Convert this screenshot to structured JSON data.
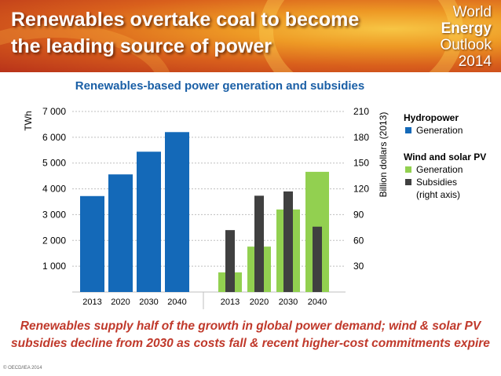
{
  "header": {
    "title_line1": "Renewables overtake coal to become",
    "title_line2": "the leading source of power",
    "logo_line1": "World",
    "logo_line2": "Energy",
    "logo_line3": "Outlook",
    "logo_line4": "2014"
  },
  "chart_data": {
    "type": "bar",
    "title": "Renewables-based power generation and subsidies",
    "ylabel": "TWh",
    "ylabel_right": "Billion dollars (2013)",
    "ylim": [
      0,
      7000
    ],
    "ylim_right": [
      0,
      210
    ],
    "yticks": [
      "1 000",
      "2 000",
      "3 000",
      "4 000",
      "5 000",
      "6 000",
      "7 000"
    ],
    "yticks_right": [
      "30",
      "60",
      "90",
      "120",
      "150",
      "180",
      "210"
    ],
    "grid": true,
    "groups": [
      {
        "name": "Hydropower",
        "categories": [
          "2013",
          "2020",
          "2030",
          "2040"
        ],
        "series": [
          {
            "name": "Generation",
            "axis": "left",
            "color": "#1469b8",
            "values": [
              3720,
              4560,
              5440,
              6200
            ]
          }
        ]
      },
      {
        "name": "Wind and solar PV",
        "categories": [
          "2013",
          "2020",
          "2030",
          "2040"
        ],
        "series": [
          {
            "name": "Generation",
            "axis": "left",
            "color": "#92d050",
            "values": [
              760,
              1760,
              3200,
              4660
            ]
          },
          {
            "name": "Subsidies",
            "axis": "right",
            "color": "#404040",
            "values": [
              72,
              112,
              117,
              76
            ]
          }
        ]
      }
    ],
    "legend_position": "right"
  },
  "legend": {
    "hydro_title": "Hydropower",
    "hydro_generation": "Generation",
    "wind_title": "Wind and solar PV",
    "wind_generation": "Generation",
    "wind_subsidies": "Subsidies",
    "wind_subsidies_note": "(right axis)"
  },
  "caption": {
    "line1": "Renewables supply half of the growth in global power demand; wind & solar PV",
    "line2": "subsidies decline from 2030 as costs fall & recent higher-cost commitments expire"
  },
  "copyright": "© OECD/IEA 2014"
}
